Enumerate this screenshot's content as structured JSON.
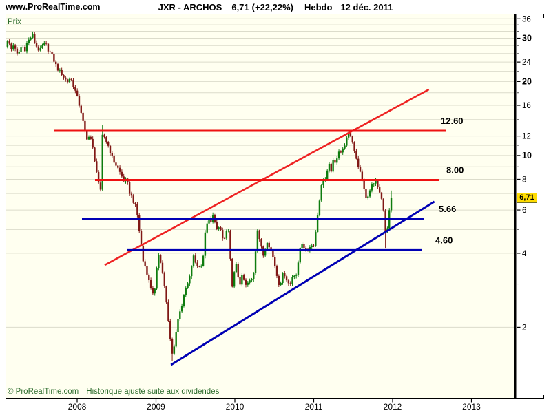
{
  "header": {
    "site": "www.ProRealTime.com",
    "symbol": "JXR - ARCHOS",
    "price": "6,71",
    "change": "(+22,22%)",
    "period": "Hebdo",
    "date": "12 déc. 2011"
  },
  "plot": {
    "ylabel": "Prix",
    "copyright": "© ProRealTime.com",
    "note": "Historique ajusté suite aux dividendes",
    "last_price_badge": "6,71",
    "background": "#FFFFF0",
    "grid_color": "#DCDCCB",
    "badge_color": "#FFDC00"
  },
  "chart_data": {
    "type": "candlestick",
    "timeframe": "weekly",
    "title": "JXR - ARCHOS 6,71 (+22,22%) Hebdo 12 déc. 2011",
    "ylabel": "Prix",
    "up_color": "#0E7C0E",
    "down_color": "#801815",
    "x_axis": {
      "year_ticks": [
        2008,
        2009,
        2010,
        2011,
        2012,
        2013
      ]
    },
    "y_axis": {
      "scale": "log",
      "labeled_ticks": [
        36,
        30,
        24,
        20,
        16,
        12,
        10,
        8,
        6,
        4,
        2
      ],
      "bold_ticks": [
        30,
        20,
        10
      ],
      "minor_ticks": [
        34,
        32,
        28,
        26,
        22,
        18,
        14,
        11,
        9,
        7,
        5,
        3
      ],
      "top": 36.5,
      "bottom": 1.03
    },
    "last_close": 6.71,
    "horizontal_levels": [
      {
        "label": "12.60",
        "value": 12.6,
        "y_value": 12.6,
        "from_year": 2007.703,
        "to_year": 2012.68,
        "color": "#EE1111"
      },
      {
        "label": "8.00",
        "value": 8.0,
        "y_value": 7.95,
        "from_year": 2008.227,
        "to_year": 2012.594,
        "color": "#EE1111"
      },
      {
        "label": "5.66",
        "value": 5.66,
        "y_value": 5.52,
        "from_year": 2008.061,
        "to_year": 2012.393,
        "color": "#0000B4"
      },
      {
        "label": "4.60",
        "value": 4.6,
        "y_value": 4.12,
        "from_year": 2008.629,
        "to_year": 2012.367,
        "color": "#0000B4"
      }
    ],
    "trend_lines": [
      {
        "name": "rising-resistance",
        "color": "#EE2222",
        "width": 2.6,
        "from": [
          2008.349,
          3.58
        ],
        "to": [
          2012.46,
          18.56
        ]
      },
      {
        "name": "rising-support",
        "color": "#0000B4",
        "width": 3,
        "from": [
          2009.19,
          1.406
        ],
        "to": [
          2012.53,
          6.49
        ]
      }
    ],
    "price_path": [
      [
        2007.092,
        28.0
      ],
      [
        2007.127,
        29.5
      ],
      [
        2007.161,
        27.0
      ],
      [
        2007.196,
        28.5
      ],
      [
        2007.231,
        25.5
      ],
      [
        2007.266,
        26.5
      ],
      [
        2007.301,
        28.0
      ],
      [
        2007.336,
        27.0
      ],
      [
        2007.371,
        29.0
      ],
      [
        2007.406,
        30.0
      ],
      [
        2007.432,
        31.2
      ],
      [
        2007.458,
        29.0
      ],
      [
        2007.493,
        27.5
      ],
      [
        2007.528,
        26.5
      ],
      [
        2007.563,
        28.0
      ],
      [
        2007.598,
        28.5
      ],
      [
        2007.633,
        27.0
      ],
      [
        2007.668,
        26.0
      ],
      [
        2007.703,
        24.5
      ],
      [
        2007.738,
        23.0
      ],
      [
        2007.773,
        22.0
      ],
      [
        2007.808,
        21.5
      ],
      [
        2007.843,
        20.5
      ],
      [
        2007.878,
        20.0
      ],
      [
        2007.913,
        20.8
      ],
      [
        2007.948,
        19.5
      ],
      [
        2007.983,
        18.0
      ],
      [
        2008.017,
        16.5
      ],
      [
        2008.052,
        15.0
      ],
      [
        2008.087,
        13.0
      ],
      [
        2008.122,
        11.5
      ],
      [
        2008.157,
        12.3
      ],
      [
        2008.192,
        11.0
      ],
      [
        2008.218,
        9.5
      ],
      [
        2008.245,
        8.8
      ],
      [
        2008.271,
        7.8
      ],
      [
        2008.297,
        7.1
      ],
      [
        2008.323,
        12.5
      ],
      [
        2008.349,
        11.8
      ],
      [
        2008.384,
        11.2
      ],
      [
        2008.419,
        10.4
      ],
      [
        2008.454,
        9.6
      ],
      [
        2008.489,
        9.2
      ],
      [
        2008.524,
        8.8
      ],
      [
        2008.559,
        8.3
      ],
      [
        2008.594,
        7.9
      ],
      [
        2008.629,
        7.9
      ],
      [
        2008.664,
        7.1
      ],
      [
        2008.699,
        6.7
      ],
      [
        2008.734,
        6.3
      ],
      [
        2008.769,
        5.6
      ],
      [
        2008.803,
        4.5
      ],
      [
        2008.838,
        3.7
      ],
      [
        2008.873,
        3.5
      ],
      [
        2008.908,
        3.1
      ],
      [
        2008.943,
        2.85
      ],
      [
        2008.978,
        2.7
      ],
      [
        2009.013,
        3.5
      ],
      [
        2009.039,
        4.1
      ],
      [
        2009.065,
        3.6
      ],
      [
        2009.1,
        3.1
      ],
      [
        2009.127,
        2.6
      ],
      [
        2009.153,
        2.15
      ],
      [
        2009.179,
        1.8
      ],
      [
        2009.205,
        1.55
      ],
      [
        2009.231,
        1.7
      ],
      [
        2009.258,
        1.95
      ],
      [
        2009.284,
        2.2
      ],
      [
        2009.31,
        2.4
      ],
      [
        2009.336,
        2.5
      ],
      [
        2009.362,
        2.75
      ],
      [
        2009.389,
        2.95
      ],
      [
        2009.415,
        3.05
      ],
      [
        2009.441,
        3.35
      ],
      [
        2009.467,
        3.95
      ],
      [
        2009.493,
        3.7
      ],
      [
        2009.52,
        3.6
      ],
      [
        2009.546,
        3.5
      ],
      [
        2009.572,
        3.6
      ],
      [
        2009.598,
        3.9
      ],
      [
        2009.624,
        4.8
      ],
      [
        2009.65,
        5.4
      ],
      [
        2009.677,
        5.5
      ],
      [
        2009.703,
        5.3
      ],
      [
        2009.729,
        5.8
      ],
      [
        2009.755,
        5.3
      ],
      [
        2009.781,
        4.8
      ],
      [
        2009.808,
        5.2
      ],
      [
        2009.834,
        4.7
      ],
      [
        2009.86,
        4.45
      ],
      [
        2009.886,
        4.8
      ],
      [
        2009.912,
        5.2
      ],
      [
        2009.939,
        3.9
      ],
      [
        2009.965,
        2.95
      ],
      [
        2009.991,
        3.3
      ],
      [
        2010.017,
        3.55
      ],
      [
        2010.043,
        3.2
      ],
      [
        2010.07,
        3.0
      ],
      [
        2010.096,
        3.25
      ],
      [
        2010.122,
        3.05
      ],
      [
        2010.148,
        2.9
      ],
      [
        2010.174,
        3.1
      ],
      [
        2010.201,
        3.05
      ],
      [
        2010.227,
        3.2
      ],
      [
        2010.253,
        3.6
      ],
      [
        2010.279,
        5.2
      ],
      [
        2010.306,
        4.7
      ],
      [
        2010.332,
        4.25
      ],
      [
        2010.358,
        3.9
      ],
      [
        2010.384,
        4.15
      ],
      [
        2010.41,
        4.5
      ],
      [
        2010.437,
        4.3
      ],
      [
        2010.463,
        4.05
      ],
      [
        2010.489,
        3.8
      ],
      [
        2010.515,
        3.5
      ],
      [
        2010.541,
        3.15
      ],
      [
        2010.568,
        2.95
      ],
      [
        2010.594,
        3.2
      ],
      [
        2010.62,
        3.35
      ],
      [
        2010.646,
        3.2
      ],
      [
        2010.672,
        3.05
      ],
      [
        2010.699,
        2.95
      ],
      [
        2010.725,
        3.2
      ],
      [
        2010.751,
        3.3
      ],
      [
        2010.777,
        3.25
      ],
      [
        2010.803,
        3.6
      ],
      [
        2010.83,
        4.25
      ],
      [
        2010.856,
        4.45
      ],
      [
        2010.882,
        4.2
      ],
      [
        2010.908,
        4.0
      ],
      [
        2010.934,
        4.2
      ],
      [
        2010.961,
        4.35
      ],
      [
        2010.987,
        4.25
      ],
      [
        2011.013,
        4.5
      ],
      [
        2011.039,
        5.4
      ],
      [
        2011.066,
        6.4
      ],
      [
        2011.092,
        7.3
      ],
      [
        2011.118,
        8.1
      ],
      [
        2011.144,
        7.9
      ],
      [
        2011.17,
        8.5
      ],
      [
        2011.197,
        9.1
      ],
      [
        2011.223,
        8.7
      ],
      [
        2011.249,
        9.5
      ],
      [
        2011.275,
        9.2
      ],
      [
        2011.301,
        10.1
      ],
      [
        2011.328,
        10.7
      ],
      [
        2011.354,
        10.1
      ],
      [
        2011.38,
        10.9
      ],
      [
        2011.406,
        11.4
      ],
      [
        2011.432,
        12.0
      ],
      [
        2011.459,
        12.3
      ],
      [
        2011.485,
        11.5
      ],
      [
        2011.511,
        10.7
      ],
      [
        2011.537,
        9.9
      ],
      [
        2011.563,
        9.1
      ],
      [
        2011.59,
        8.5
      ],
      [
        2011.616,
        7.9
      ],
      [
        2011.642,
        7.3
      ],
      [
        2011.668,
        6.5
      ],
      [
        2011.694,
        6.9
      ],
      [
        2011.721,
        7.3
      ],
      [
        2011.747,
        7.7
      ],
      [
        2011.773,
        7.95
      ],
      [
        2011.799,
        7.7
      ],
      [
        2011.825,
        7.1
      ],
      [
        2011.852,
        6.7
      ],
      [
        2011.878,
        6.3
      ],
      [
        2011.904,
        4.9
      ],
      [
        2011.93,
        4.85
      ],
      [
        2011.956,
        5.9
      ],
      [
        2011.983,
        6.71
      ]
    ],
    "wick_overrides": [
      {
        "year": 2007.432,
        "high": 31.8
      },
      {
        "year": 2008.323,
        "high": 13.3
      },
      {
        "year": 2009.205,
        "low": 1.46
      },
      {
        "year": 2011.459,
        "high": 12.55
      },
      {
        "year": 2011.904,
        "low": 4.18
      },
      {
        "year": 2011.983,
        "high": 7.2
      }
    ]
  }
}
